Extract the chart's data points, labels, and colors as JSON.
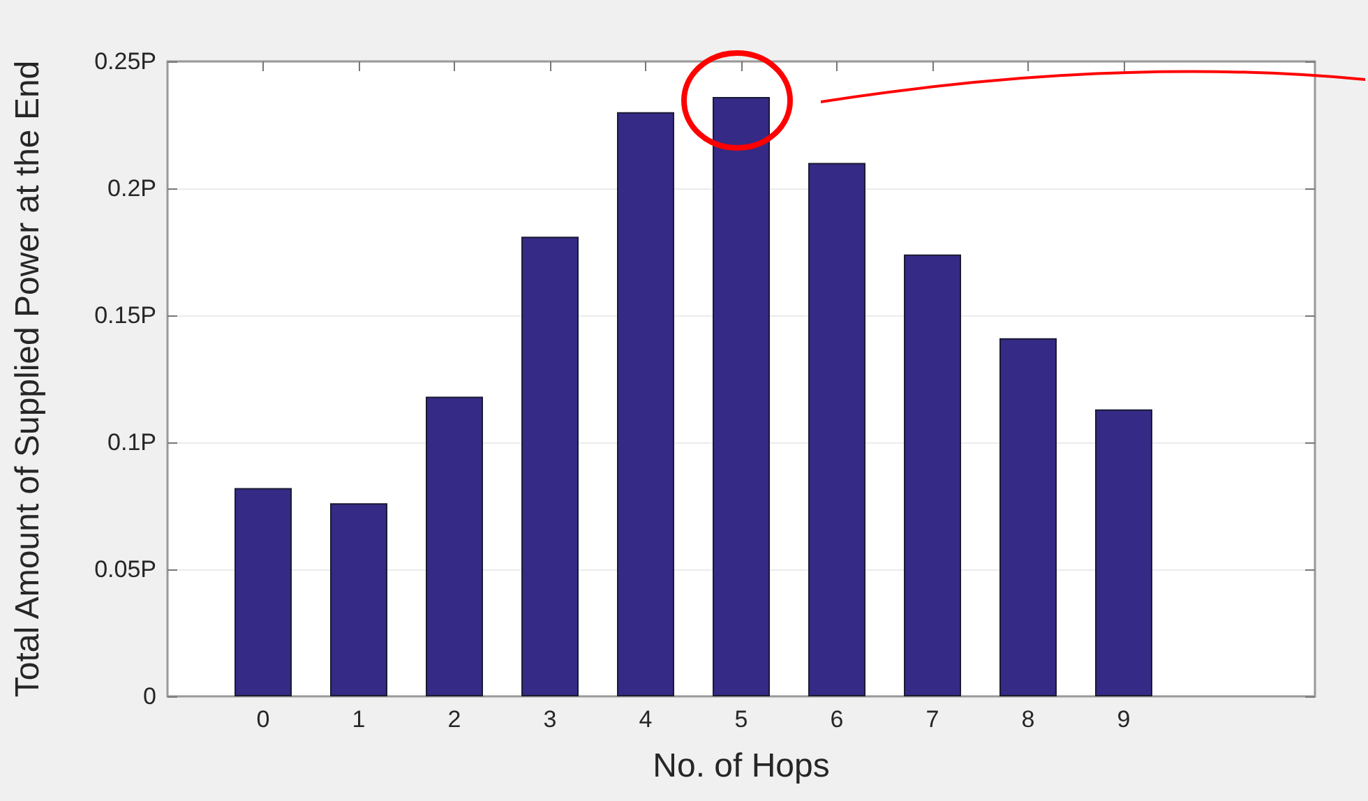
{
  "chart_data": {
    "type": "bar",
    "xlabel": "No. of Hops",
    "ylabel": "Total Amount of Supplied Power at the End",
    "x": [
      0,
      1,
      2,
      3,
      4,
      5,
      6,
      7,
      8,
      9
    ],
    "values": [
      0.082,
      0.076,
      0.118,
      0.181,
      0.23,
      0.236,
      0.21,
      0.174,
      0.141,
      0.113
    ],
    "color": "#352a85",
    "xlim": [
      -1,
      11
    ],
    "xticks": [
      0,
      1,
      2,
      3,
      4,
      5,
      6,
      7,
      8,
      9
    ],
    "ylim": [
      0,
      0.25
    ],
    "yticks": [
      0,
      {
        "value": 0.05,
        "label": "0.05P"
      },
      {
        "value": 0.1,
        "label": "0.1P"
      },
      {
        "value": 0.15,
        "label": "0.15P"
      },
      {
        "value": 0.2,
        "label": "0.2P"
      },
      {
        "value": 0.25,
        "label": "0.25P"
      }
    ],
    "grid": "y"
  }
}
